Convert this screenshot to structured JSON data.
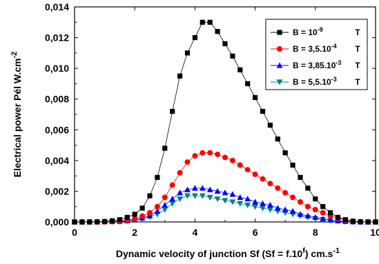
{
  "chart_data": {
    "type": "line",
    "xlabel": "Dynamic velocity of junction Sf (Sf = f.10",
    "xlabel_sup": "f",
    "xlabel_tail": ") cm.s",
    "xlabel_tail_sup": "-1",
    "ylabel": "Electrical power Pél W.cm",
    "ylabel_sup": "-2",
    "xlim": [
      0,
      10
    ],
    "ylim": [
      0,
      0.014
    ],
    "x_ticks": [
      0,
      2,
      4,
      6,
      8,
      10
    ],
    "x_tick_labels": [
      "0",
      "2",
      "4",
      "6",
      "8",
      "10"
    ],
    "y_ticks": [
      0,
      0.002,
      0.004,
      0.006,
      0.008,
      0.01,
      0.012,
      0.014
    ],
    "y_tick_labels": [
      "0,000",
      "0,002",
      "0,004",
      "0,006",
      "0,008",
      "0,010",
      "0,012",
      "0,014"
    ],
    "grid": false,
    "legend_position": "top-right",
    "x": [
      0,
      0.25,
      0.5,
      0.75,
      1,
      1.25,
      1.5,
      1.75,
      2,
      2.25,
      2.5,
      2.75,
      3,
      3.25,
      3.5,
      3.75,
      4,
      4.25,
      4.5,
      4.75,
      5,
      5.25,
      5.5,
      5.75,
      6,
      6.25,
      6.5,
      6.75,
      7,
      7.25,
      7.5,
      7.75,
      8,
      8.25,
      8.5,
      8.75,
      9,
      9.25,
      9.5,
      9.75,
      10
    ],
    "series": [
      {
        "name": "B = 10",
        "name_sup": "-9",
        "name_unit": "T",
        "color": "#000000",
        "marker": "square",
        "values": [
          0,
          0,
          0,
          1e-05,
          3e-05,
          8e-05,
          0.00015,
          0.0003,
          0.0005,
          0.0009,
          0.0017,
          0.0029,
          0.0048,
          0.0072,
          0.0095,
          0.011,
          0.012,
          0.013,
          0.013,
          0.0124,
          0.0116,
          0.0108,
          0.0099,
          0.009,
          0.0081,
          0.0072,
          0.0063,
          0.0054,
          0.0045,
          0.0037,
          0.0029,
          0.0022,
          0.0015,
          0.001,
          0.0006,
          0.0003,
          0.00015,
          5e-05,
          1e-05,
          0,
          0
        ]
      },
      {
        "name": "B = 3,5.10",
        "name_sup": "-4",
        "name_unit": "T",
        "color": "#ff0000",
        "marker": "circle",
        "values": [
          0,
          0,
          0,
          0,
          1e-05,
          3e-05,
          6e-05,
          0.00012,
          0.0002,
          0.00038,
          0.0006,
          0.001,
          0.0016,
          0.0024,
          0.0032,
          0.0039,
          0.0043,
          0.0045,
          0.0045,
          0.0044,
          0.0042,
          0.004,
          0.0037,
          0.0034,
          0.0031,
          0.0028,
          0.0025,
          0.0022,
          0.0019,
          0.0016,
          0.0013,
          0.001,
          0.0008,
          0.0006,
          0.0004,
          0.00025,
          0.00012,
          5e-05,
          1e-05,
          0,
          0
        ]
      },
      {
        "name": "B = 3,85.10",
        "name_sup": "-3",
        "name_unit": "T",
        "color": "#0000ff",
        "marker": "triangle-up",
        "values": [
          0,
          0,
          0,
          0,
          1e-05,
          2e-05,
          4e-05,
          8e-05,
          0.00015,
          0.00025,
          0.0004,
          0.0007,
          0.0011,
          0.0015,
          0.0019,
          0.0021,
          0.0022,
          0.0022,
          0.0021,
          0.002,
          0.0019,
          0.0018,
          0.0016,
          0.0015,
          0.0013,
          0.0012,
          0.0011,
          0.0009,
          0.0008,
          0.0007,
          0.0005,
          0.0004,
          0.0003,
          0.0002,
          0.00013,
          8e-05,
          4e-05,
          1e-05,
          0,
          0,
          0
        ]
      },
      {
        "name": "B = 5,5.10",
        "name_sup": "-3",
        "name_unit": "T",
        "color": "#008080",
        "marker": "triangle-down",
        "values": [
          0,
          0,
          0,
          0,
          1e-05,
          2e-05,
          3e-05,
          6e-05,
          0.00012,
          0.0002,
          0.00032,
          0.0005,
          0.0008,
          0.0012,
          0.0015,
          0.0017,
          0.0017,
          0.0017,
          0.0016,
          0.0015,
          0.0014,
          0.0013,
          0.0012,
          0.0011,
          0.001,
          0.0009,
          0.0008,
          0.0007,
          0.0006,
          0.0005,
          0.0004,
          0.0003,
          0.00022,
          0.00015,
          0.0001,
          5e-05,
          2e-05,
          0,
          0,
          0,
          0
        ]
      }
    ]
  }
}
